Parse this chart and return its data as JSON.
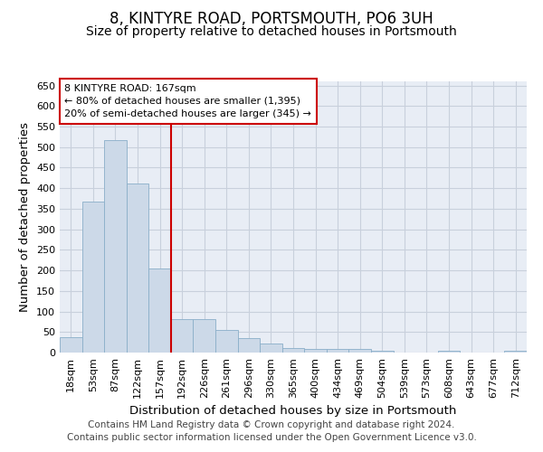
{
  "title": "8, KINTYRE ROAD, PORTSMOUTH, PO6 3UH",
  "subtitle": "Size of property relative to detached houses in Portsmouth",
  "xlabel": "Distribution of detached houses by size in Portsmouth",
  "ylabel": "Number of detached properties",
  "footer_line1": "Contains HM Land Registry data © Crown copyright and database right 2024.",
  "footer_line2": "Contains public sector information licensed under the Open Government Licence v3.0.",
  "categories": [
    "18sqm",
    "53sqm",
    "87sqm",
    "122sqm",
    "157sqm",
    "192sqm",
    "226sqm",
    "261sqm",
    "296sqm",
    "330sqm",
    "365sqm",
    "400sqm",
    "434sqm",
    "469sqm",
    "504sqm",
    "539sqm",
    "573sqm",
    "608sqm",
    "643sqm",
    "677sqm",
    "712sqm"
  ],
  "values": [
    37,
    367,
    516,
    411,
    205,
    82,
    82,
    55,
    35,
    22,
    11,
    8,
    8,
    8,
    4,
    0,
    0,
    4,
    0,
    0,
    4
  ],
  "bar_color": "#ccd9e8",
  "bar_edge_color": "#8aaec8",
  "red_line_index": 5,
  "red_line_color": "#cc0000",
  "annotation_line1": "8 KINTYRE ROAD: 167sqm",
  "annotation_line2": "← 80% of detached houses are smaller (1,395)",
  "annotation_line3": "20% of semi-detached houses are larger (345) →",
  "annotation_box_color": "#cc0000",
  "ylim": [
    0,
    660
  ],
  "yticks": [
    0,
    50,
    100,
    150,
    200,
    250,
    300,
    350,
    400,
    450,
    500,
    550,
    600,
    650
  ],
  "grid_color": "#c8d0dc",
  "background_color": "#e8edf5",
  "title_fontsize": 12,
  "subtitle_fontsize": 10,
  "axis_label_fontsize": 9.5,
  "tick_fontsize": 8,
  "footer_fontsize": 7.5
}
